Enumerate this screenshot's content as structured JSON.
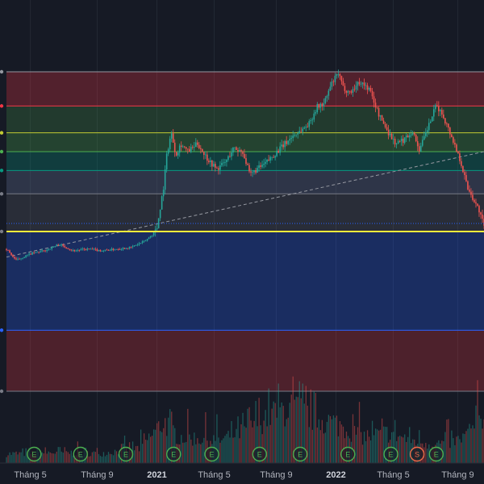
{
  "chart_data": {
    "type": "candlestick",
    "xaxis": {
      "ticks": [
        {
          "label": "Tháng 5",
          "t": 0.05,
          "bold": false
        },
        {
          "label": "Tháng 9",
          "t": 0.19,
          "bold": false
        },
        {
          "label": "2021",
          "t": 0.315,
          "bold": true
        },
        {
          "label": "Tháng 5",
          "t": 0.435,
          "bold": false
        },
        {
          "label": "Tháng 9",
          "t": 0.565,
          "bold": false
        },
        {
          "label": "2022",
          "t": 0.69,
          "bold": true
        },
        {
          "label": "Tháng 5",
          "t": 0.81,
          "bold": false
        },
        {
          "label": "Tháng 9",
          "t": 0.945,
          "bold": false
        }
      ]
    },
    "price_scale": {
      "min": 0,
      "max": 1
    },
    "fib_levels": [
      {
        "level": 1.0,
        "line_color": "#9598a1"
      },
      {
        "level": 0.786,
        "line_color": "#f23645"
      },
      {
        "level": 0.618,
        "line_color": "#c0ca33"
      },
      {
        "level": 0.5,
        "line_color": "#4caf50"
      },
      {
        "level": 0.382,
        "line_color": "#089981"
      },
      {
        "level": 0.236,
        "line_color": "#787b86"
      },
      {
        "level": 0.0,
        "line_color": "#787b86"
      },
      {
        "level": -0.618,
        "line_color": "#2962ff"
      },
      {
        "level": -1.0,
        "line_color": "#787b86"
      }
    ],
    "fib_zones": [
      {
        "from": 0.786,
        "to": 1.0,
        "color": "#f23645",
        "opacity": 0.28
      },
      {
        "from": 0.618,
        "to": 0.786,
        "color": "#4caf50",
        "opacity": 0.22
      },
      {
        "from": 0.5,
        "to": 0.618,
        "color": "#4caf50",
        "opacity": 0.28
      },
      {
        "from": 0.382,
        "to": 0.5,
        "color": "#089981",
        "opacity": 0.28
      },
      {
        "from": 0.236,
        "to": 0.382,
        "color": "#5d6b8a",
        "opacity": 0.35
      },
      {
        "from": 0.0,
        "to": 0.236,
        "color": "#787b86",
        "opacity": 0.2
      },
      {
        "from": -0.618,
        "to": 0.0,
        "color": "#2962ff",
        "opacity": 0.28
      },
      {
        "from": -1.0,
        "to": -0.618,
        "color": "#f23645",
        "opacity": 0.25
      }
    ],
    "current_price_level": 0.0,
    "current_price_color": "#ffeb3b",
    "trend_line": {
      "from": {
        "t": 0.0,
        "level": -0.16
      },
      "to": {
        "t": 1.0,
        "level": 0.5
      }
    },
    "price_path": [
      [
        0.0,
        -0.11
      ],
      [
        0.02,
        -0.18
      ],
      [
        0.05,
        -0.14
      ],
      [
        0.08,
        -0.12
      ],
      [
        0.11,
        -0.08
      ],
      [
        0.14,
        -0.12
      ],
      [
        0.17,
        -0.11
      ],
      [
        0.2,
        -0.12
      ],
      [
        0.23,
        -0.11
      ],
      [
        0.26,
        -0.1
      ],
      [
        0.29,
        -0.06
      ],
      [
        0.305,
        -0.02
      ],
      [
        0.315,
        0.02
      ],
      [
        0.33,
        0.3
      ],
      [
        0.335,
        0.47
      ],
      [
        0.345,
        0.62
      ],
      [
        0.355,
        0.48
      ],
      [
        0.365,
        0.55
      ],
      [
        0.38,
        0.5
      ],
      [
        0.4,
        0.55
      ],
      [
        0.42,
        0.46
      ],
      [
        0.44,
        0.39
      ],
      [
        0.46,
        0.44
      ],
      [
        0.475,
        0.52
      ],
      [
        0.495,
        0.5
      ],
      [
        0.51,
        0.35
      ],
      [
        0.52,
        0.38
      ],
      [
        0.54,
        0.42
      ],
      [
        0.56,
        0.48
      ],
      [
        0.58,
        0.54
      ],
      [
        0.6,
        0.6
      ],
      [
        0.62,
        0.64
      ],
      [
        0.635,
        0.68
      ],
      [
        0.65,
        0.78
      ],
      [
        0.665,
        0.8
      ],
      [
        0.68,
        0.92
      ],
      [
        0.695,
        0.99
      ],
      [
        0.705,
        0.9
      ],
      [
        0.72,
        0.87
      ],
      [
        0.74,
        0.94
      ],
      [
        0.76,
        0.89
      ],
      [
        0.78,
        0.73
      ],
      [
        0.8,
        0.62
      ],
      [
        0.815,
        0.55
      ],
      [
        0.83,
        0.57
      ],
      [
        0.85,
        0.63
      ],
      [
        0.865,
        0.51
      ],
      [
        0.88,
        0.63
      ],
      [
        0.9,
        0.79
      ],
      [
        0.915,
        0.72
      ],
      [
        0.93,
        0.61
      ],
      [
        0.95,
        0.45
      ],
      [
        0.965,
        0.28
      ],
      [
        0.98,
        0.19
      ],
      [
        0.99,
        0.13
      ],
      [
        1.0,
        0.03
      ]
    ],
    "volume_profile": [
      [
        0.0,
        0.12
      ],
      [
        0.1,
        0.14
      ],
      [
        0.2,
        0.13
      ],
      [
        0.28,
        0.2
      ],
      [
        0.33,
        0.55
      ],
      [
        0.36,
        0.35
      ],
      [
        0.45,
        0.3
      ],
      [
        0.5,
        0.45
      ],
      [
        0.55,
        0.65
      ],
      [
        0.6,
        0.75
      ],
      [
        0.65,
        0.6
      ],
      [
        0.7,
        0.5
      ],
      [
        0.75,
        0.35
      ],
      [
        0.8,
        0.4
      ],
      [
        0.85,
        0.3
      ],
      [
        0.9,
        0.25
      ],
      [
        0.95,
        0.3
      ],
      [
        1.0,
        0.6
      ]
    ],
    "volume_up_color": "#26a69a",
    "volume_down_color": "#ef5350",
    "event_markers": [
      {
        "t": 0.058,
        "label": "E",
        "color": "#4caf50"
      },
      {
        "t": 0.155,
        "label": "E",
        "color": "#4caf50"
      },
      {
        "t": 0.25,
        "label": "E",
        "color": "#4caf50"
      },
      {
        "t": 0.35,
        "label": "E",
        "color": "#4caf50"
      },
      {
        "t": 0.43,
        "label": "E",
        "color": "#4caf50"
      },
      {
        "t": 0.53,
        "label": "E",
        "color": "#4caf50"
      },
      {
        "t": 0.615,
        "label": "E",
        "color": "#4caf50"
      },
      {
        "t": 0.715,
        "label": "E",
        "color": "#4caf50"
      },
      {
        "t": 0.805,
        "label": "E",
        "color": "#4caf50"
      },
      {
        "t": 0.86,
        "label": "S",
        "color": "#ef6c4a"
      },
      {
        "t": 0.9,
        "label": "E",
        "color": "#4caf50"
      }
    ],
    "candle_up_color": "#26a69a",
    "candle_down_color": "#ef5350",
    "grid": true
  }
}
